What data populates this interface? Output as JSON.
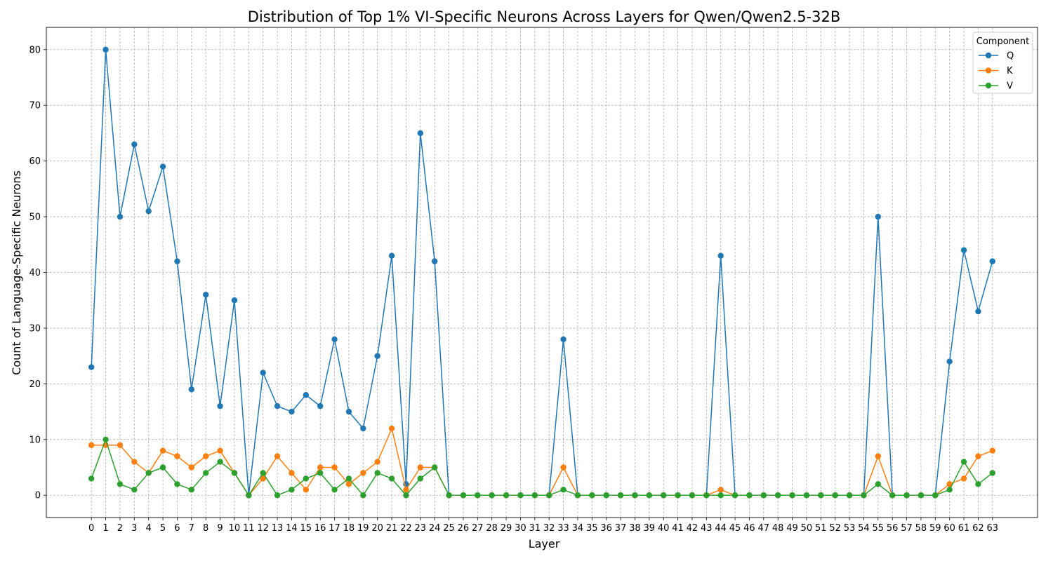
{
  "chart_data": {
    "type": "line",
    "title": "Distribution of Top 1% VI-Specific Neurons Across Layers for Qwen/Qwen2.5-32B",
    "xlabel": "Layer",
    "ylabel": "Count of Language-Specific Neurons",
    "x": [
      0,
      1,
      2,
      3,
      4,
      5,
      6,
      7,
      8,
      9,
      10,
      11,
      12,
      13,
      14,
      15,
      16,
      17,
      18,
      19,
      20,
      21,
      22,
      23,
      24,
      25,
      26,
      27,
      28,
      29,
      30,
      31,
      32,
      33,
      34,
      35,
      36,
      37,
      38,
      39,
      40,
      41,
      42,
      43,
      44,
      45,
      46,
      47,
      48,
      49,
      50,
      51,
      52,
      53,
      54,
      55,
      56,
      57,
      58,
      59,
      60,
      61,
      62,
      63
    ],
    "xlim": [
      -3.15,
      66.15
    ],
    "ylim": [
      -4,
      84
    ],
    "yticks": [
      0,
      10,
      20,
      30,
      40,
      50,
      60,
      70,
      80
    ],
    "grid": true,
    "legend": {
      "title": "Component",
      "placement": "top-right"
    },
    "series": [
      {
        "name": "Q",
        "color": "#1f77b4",
        "values": [
          23,
          80,
          50,
          63,
          51,
          59,
          42,
          19,
          36,
          16,
          35,
          0,
          22,
          16,
          15,
          18,
          16,
          28,
          15,
          12,
          25,
          43,
          2,
          65,
          42,
          0,
          0,
          0,
          0,
          0,
          0,
          0,
          0,
          28,
          0,
          0,
          0,
          0,
          0,
          0,
          0,
          0,
          0,
          0,
          43,
          0,
          0,
          0,
          0,
          0,
          0,
          0,
          0,
          0,
          0,
          50,
          0,
          0,
          0,
          0,
          24,
          44,
          33,
          42
        ]
      },
      {
        "name": "K",
        "color": "#ff7f0e",
        "values": [
          9,
          9,
          9,
          6,
          4,
          8,
          7,
          5,
          7,
          8,
          4,
          0,
          3,
          7,
          4,
          1,
          5,
          5,
          2,
          4,
          6,
          12,
          1,
          5,
          5,
          0,
          0,
          0,
          0,
          0,
          0,
          0,
          0,
          5,
          0,
          0,
          0,
          0,
          0,
          0,
          0,
          0,
          0,
          0,
          1,
          0,
          0,
          0,
          0,
          0,
          0,
          0,
          0,
          0,
          0,
          7,
          0,
          0,
          0,
          0,
          2,
          3,
          7,
          8
        ]
      },
      {
        "name": "V",
        "color": "#2ca02c",
        "values": [
          3,
          10,
          2,
          1,
          4,
          5,
          2,
          1,
          4,
          6,
          4,
          0,
          4,
          0,
          1,
          3,
          4,
          1,
          3,
          0,
          4,
          3,
          0,
          3,
          5,
          0,
          0,
          0,
          0,
          0,
          0,
          0,
          0,
          1,
          0,
          0,
          0,
          0,
          0,
          0,
          0,
          0,
          0,
          0,
          0,
          0,
          0,
          0,
          0,
          0,
          0,
          0,
          0,
          0,
          0,
          2,
          0,
          0,
          0,
          0,
          1,
          6,
          2,
          4
        ]
      }
    ]
  }
}
